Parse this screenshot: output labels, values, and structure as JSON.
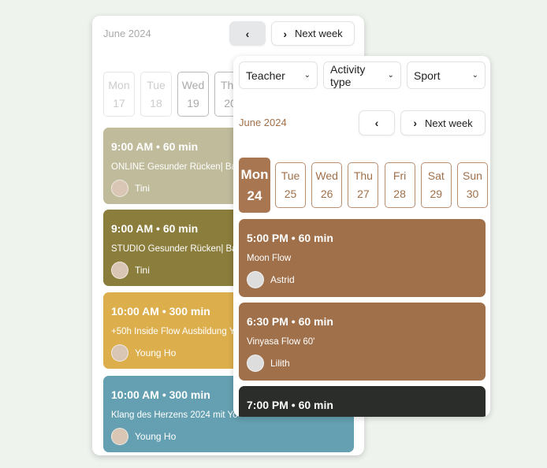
{
  "back": {
    "month": "June 2024",
    "prev_icon": "chevron-left-icon",
    "next_label": "Next week",
    "days": [
      {
        "dow": "Mon",
        "date": "17"
      },
      {
        "dow": "Tue",
        "date": "18"
      },
      {
        "dow": "Wed",
        "date": "19"
      },
      {
        "dow": "Thu",
        "date": "20"
      }
    ],
    "events": [
      {
        "time": "9:00 AM • 60 min",
        "name": "ONLINE Gesunder Rücken| Ba",
        "teacher": "Tini",
        "color": "#bfbb9b"
      },
      {
        "time": "9:00 AM • 60 min",
        "name": "STUDIO Gesunder Rücken| Ba",
        "teacher": "Tini",
        "color": "#8b7d3b"
      },
      {
        "time": "10:00 AM • 300 min",
        "name": "+50h Inside Flow Ausbildung Y",
        "teacher": "Young Ho",
        "color": "#dcaf4c"
      },
      {
        "time": "10:00 AM • 300 min",
        "name": "Klang des Herzens 2024 mit Yo",
        "teacher": "Young Ho",
        "color": "#64a0b1"
      }
    ]
  },
  "front": {
    "filters": [
      "Teacher",
      "Activity type",
      "Sport"
    ],
    "month": "June 2024",
    "next_label": "Next week",
    "days": [
      {
        "dow": "Mon",
        "date": "24",
        "active": true
      },
      {
        "dow": "Tue",
        "date": "25"
      },
      {
        "dow": "Wed",
        "date": "26"
      },
      {
        "dow": "Thu",
        "date": "27"
      },
      {
        "dow": "Fri",
        "date": "28"
      },
      {
        "dow": "Sat",
        "date": "29"
      },
      {
        "dow": "Sun",
        "date": "30"
      }
    ],
    "events": [
      {
        "time": "5:00 PM • 60 min",
        "name": "Moon Flow",
        "teacher": "Astrid",
        "color": "#a0704a"
      },
      {
        "time": "6:30 PM • 60 min",
        "name": "Vinyasa Flow 60'",
        "teacher": "Lilith",
        "color": "#a0704a"
      },
      {
        "time": "7:00 PM • 60 min",
        "color": "#2a2d2a"
      }
    ]
  },
  "colors": {
    "accent": "#a87650",
    "month_front": "#a0704a"
  }
}
